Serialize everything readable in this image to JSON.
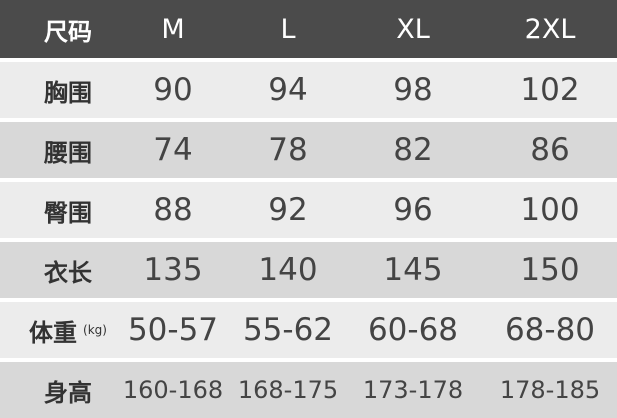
{
  "table": {
    "header": [
      "尺码",
      "M",
      "L",
      "XL",
      "2XL"
    ],
    "rows": [
      {
        "label": "胸围",
        "values": [
          "90",
          "94",
          "98",
          "102"
        ]
      },
      {
        "label": "腰围",
        "values": [
          "74",
          "78",
          "82",
          "86"
        ]
      },
      {
        "label": "臀围",
        "values": [
          "88",
          "92",
          "96",
          "100"
        ]
      },
      {
        "label": "衣长",
        "values": [
          "135",
          "140",
          "145",
          "150"
        ]
      },
      {
        "label": "体重",
        "unit": "(kg)",
        "values": [
          "50-57",
          "55-62",
          "60-68",
          "68-80"
        ]
      },
      {
        "label": "身高",
        "values": [
          "160-168",
          "168-175",
          "173-178",
          "178-185"
        ]
      }
    ]
  }
}
